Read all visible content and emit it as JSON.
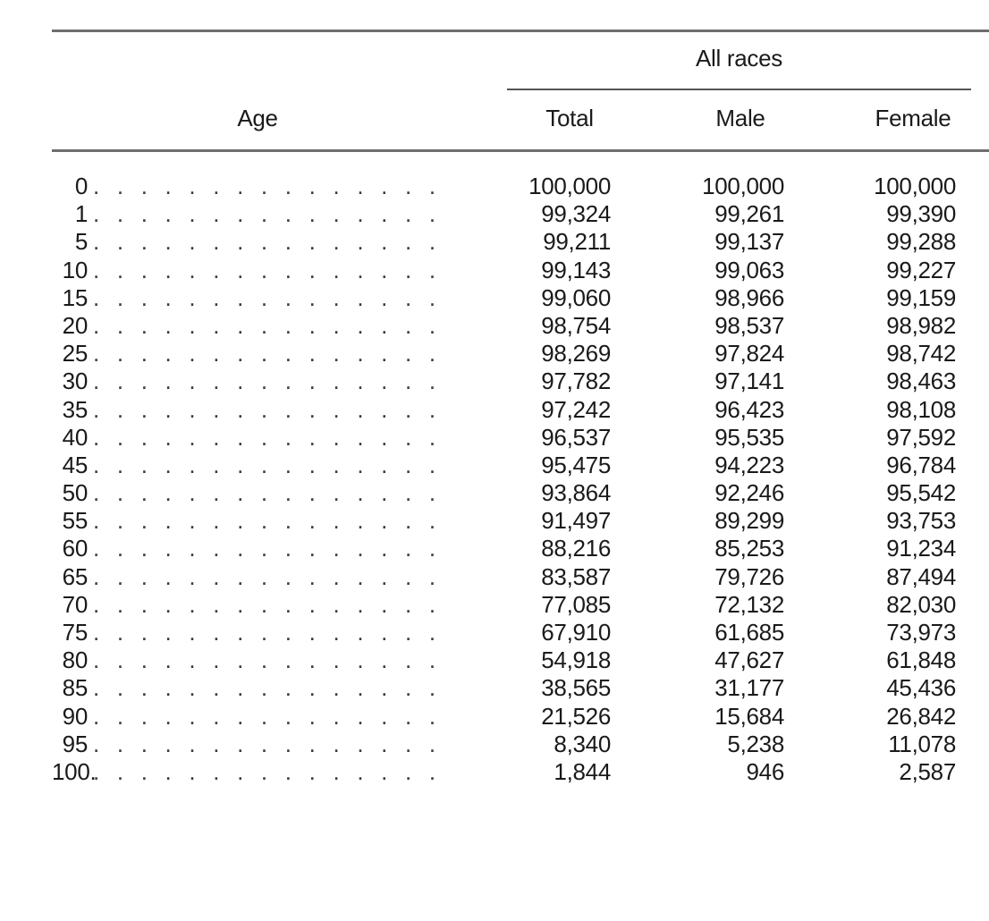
{
  "table": {
    "group_header": "All races",
    "columns": {
      "age": "Age",
      "total": "Total",
      "male": "Male",
      "female": "Female"
    },
    "leader": ". . . . . . . . . . . . . . . . . . . . . . . . .",
    "rows": [
      {
        "age": "0",
        "total": "100,000",
        "male": "100,000",
        "female": "100,000"
      },
      {
        "age": "1",
        "total": "99,324",
        "male": "99,261",
        "female": "99,390"
      },
      {
        "age": "5",
        "total": "99,211",
        "male": "99,137",
        "female": "99,288"
      },
      {
        "age": "10",
        "total": "99,143",
        "male": "99,063",
        "female": "99,227"
      },
      {
        "age": "15",
        "total": "99,060",
        "male": "98,966",
        "female": "99,159"
      },
      {
        "age": "20",
        "total": "98,754",
        "male": "98,537",
        "female": "98,982"
      },
      {
        "age": "25",
        "total": "98,269",
        "male": "97,824",
        "female": "98,742"
      },
      {
        "age": "30",
        "total": "97,782",
        "male": "97,141",
        "female": "98,463"
      },
      {
        "age": "35",
        "total": "97,242",
        "male": "96,423",
        "female": "98,108"
      },
      {
        "age": "40",
        "total": "96,537",
        "male": "95,535",
        "female": "97,592"
      },
      {
        "age": "45",
        "total": "95,475",
        "male": "94,223",
        "female": "96,784"
      },
      {
        "age": "50",
        "total": "93,864",
        "male": "92,246",
        "female": "95,542"
      },
      {
        "age": "55",
        "total": "91,497",
        "male": "89,299",
        "female": "93,753"
      },
      {
        "age": "60",
        "total": "88,216",
        "male": "85,253",
        "female": "91,234"
      },
      {
        "age": "65",
        "total": "83,587",
        "male": "79,726",
        "female": "87,494"
      },
      {
        "age": "70",
        "total": "77,085",
        "male": "72,132",
        "female": "82,030"
      },
      {
        "age": "75",
        "total": "67,910",
        "male": "61,685",
        "female": "73,973"
      },
      {
        "age": "80",
        "total": "54,918",
        "male": "47,627",
        "female": "61,848"
      },
      {
        "age": "85",
        "total": "38,565",
        "male": "31,177",
        "female": "45,436"
      },
      {
        "age": "90",
        "total": "21,526",
        "male": "15,684",
        "female": "26,842"
      },
      {
        "age": "95",
        "total": "8,340",
        "male": "5,238",
        "female": "11,078"
      },
      {
        "age": "100.",
        "total": "1,844",
        "male": "946",
        "female": "2,587"
      }
    ]
  }
}
